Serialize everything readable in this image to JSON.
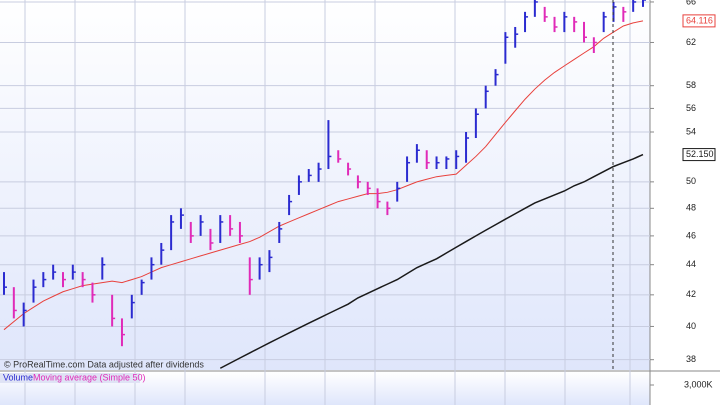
{
  "chart_data": {
    "type": "ohlc",
    "log_scale": true,
    "grid": true,
    "ylim": [
      37.4,
      66.2
    ],
    "yticks": [
      38,
      40,
      42,
      44,
      46,
      48,
      50,
      54,
      56,
      58,
      62,
      66
    ],
    "up_color": "#2b2bd0",
    "down_color": "#e02ab8",
    "high": [
      43.5,
      42.5,
      41.5,
      43,
      43.5,
      44,
      43.5,
      44,
      43.5,
      42.8,
      44.5,
      42,
      40.5,
      42,
      43,
      44.5,
      45.5,
      47.5,
      48,
      47,
      47.5,
      46.5,
      47.5,
      47.5,
      47,
      44.5,
      44.5,
      45,
      47,
      49,
      50.5,
      51,
      51.5,
      55,
      52.5,
      51.5,
      50.5,
      50,
      49.5,
      48.5,
      50,
      52,
      53,
      52.5,
      52,
      52,
      52.5,
      54,
      56,
      58,
      59.5,
      63,
      63.5,
      65,
      66.5,
      65.5,
      64.5,
      65,
      64.5,
      64,
      62.5,
      65,
      66,
      65.5,
      66.5,
      66.5
    ],
    "low": [
      42,
      40.5,
      40,
      41.5,
      42.5,
      43,
      42.5,
      43,
      42.5,
      41.5,
      43,
      40,
      38.8,
      40.5,
      42,
      43,
      44,
      45,
      46.5,
      45.5,
      46,
      45,
      45.5,
      46,
      45.5,
      42,
      43,
      43.5,
      45.5,
      47.5,
      49,
      50,
      50,
      51,
      51.5,
      50.5,
      49.5,
      49,
      48,
      47.5,
      48.5,
      50,
      51.5,
      51,
      51,
      51,
      51,
      51.5,
      53.5,
      56,
      58,
      60,
      61.5,
      63,
      64.5,
      64,
      63,
      63,
      63,
      62,
      61,
      63,
      64,
      64,
      65,
      65.5
    ],
    "close": [
      42.5,
      41,
      41,
      42.5,
      43,
      43.5,
      43,
      43.5,
      43,
      42,
      44,
      40.5,
      39.5,
      41.5,
      42.8,
      44,
      45,
      47,
      47.5,
      46,
      47,
      45.5,
      47,
      46.5,
      46,
      43,
      44,
      44.5,
      46.5,
      48.5,
      50,
      50.5,
      51,
      52,
      51.8,
      51,
      50,
      49.5,
      48.5,
      48,
      49.5,
      51.5,
      52.5,
      51.5,
      51.5,
      51.8,
      52,
      53.5,
      55.5,
      57.5,
      59,
      62.5,
      62.8,
      64.5,
      66,
      64.5,
      63.5,
      64.5,
      64,
      62.5,
      62,
      64.5,
      65.5,
      65,
      66,
      66.2
    ],
    "series": [
      {
        "color": "#e8413c",
        "flag": "64.116",
        "values": [
          39.8,
          40.3,
          40.8,
          41.2,
          41.6,
          41.9,
          42.2,
          42.4,
          42.6,
          42.7,
          42.8,
          42.9,
          42.8,
          43.0,
          43.2,
          43.5,
          43.8,
          44.0,
          44.2,
          44.4,
          44.6,
          44.8,
          45.0,
          45.2,
          45.4,
          45.6,
          45.9,
          46.3,
          46.7,
          47.0,
          47.3,
          47.6,
          47.9,
          48.2,
          48.5,
          48.7,
          48.9,
          49.1,
          49.1,
          49.2,
          49.4,
          49.7,
          50.0,
          50.2,
          50.4,
          50.5,
          50.6,
          51.3,
          52.0,
          52.8,
          53.8,
          54.8,
          55.8,
          56.8,
          57.7,
          58.5,
          59.2,
          59.8,
          60.4,
          61.0,
          61.6,
          62.4,
          63.0,
          63.6,
          63.9,
          64.1
        ]
      },
      {
        "color": "#1a1a1a",
        "flag": "52.150",
        "values": [
          null,
          null,
          null,
          null,
          null,
          null,
          null,
          null,
          null,
          null,
          null,
          null,
          null,
          null,
          null,
          null,
          null,
          null,
          null,
          null,
          null,
          null,
          37.5,
          37.8,
          38.1,
          38.4,
          38.7,
          39.0,
          39.3,
          39.6,
          39.9,
          40.2,
          40.5,
          40.8,
          41.1,
          41.4,
          41.8,
          42.1,
          42.4,
          42.7,
          43.0,
          43.4,
          43.8,
          44.1,
          44.4,
          44.8,
          45.2,
          45.6,
          46.0,
          46.4,
          46.8,
          47.2,
          47.6,
          48.0,
          48.4,
          48.7,
          49.0,
          49.3,
          49.7,
          50.0,
          50.4,
          50.8,
          51.2,
          51.5,
          51.8,
          52.15
        ]
      }
    ],
    "source_note": "© ProRealTime.com  Data adjusted after dividends",
    "volume_panel": {
      "title": "Volume",
      "indicator": "Moving average (Simple 50)",
      "yticks": [
        {
          "value": 3000000,
          "label": "3,000K"
        }
      ]
    }
  }
}
